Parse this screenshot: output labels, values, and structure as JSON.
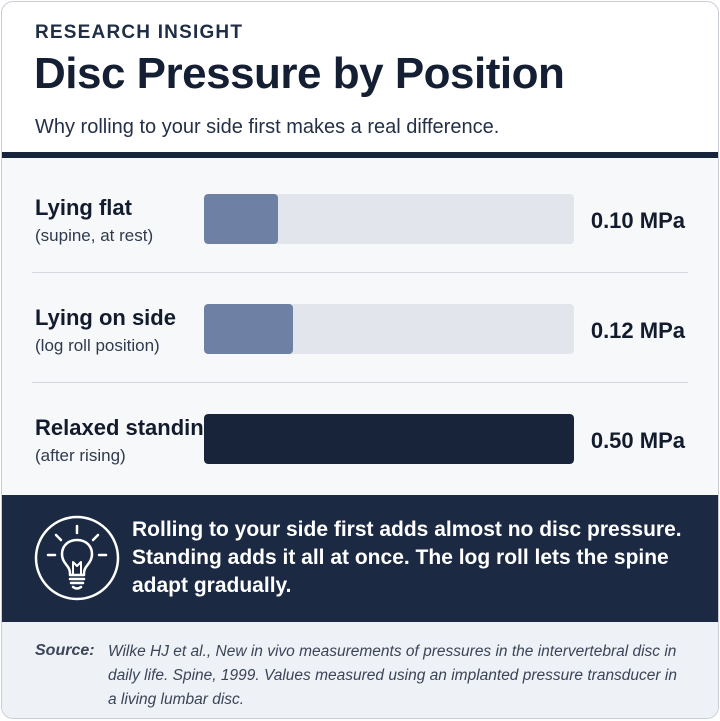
{
  "header": {
    "eyebrow": "RESEARCH INSIGHT",
    "title": "Disc Pressure by Position",
    "subtitle": "Why rolling to your side first makes a real difference."
  },
  "chart_data": {
    "type": "bar",
    "orientation": "horizontal",
    "categories": [
      "Lying flat",
      "Lying on side",
      "Relaxed standing"
    ],
    "sublabels": [
      "(supine, at rest)",
      "(log roll position)",
      "(after rising)"
    ],
    "values": [
      0.1,
      0.12,
      0.5
    ],
    "value_labels": [
      "0.10 MPa",
      "0.12 MPa",
      "0.50 MPa"
    ],
    "unit": "MPa",
    "xlim": [
      0,
      0.5
    ],
    "grid": false,
    "colors": [
      "#6e80a3",
      "#6e80a3",
      "#17243a"
    ],
    "track_color": "#e2e6ec"
  },
  "callout": {
    "icon": "lightbulb-icon",
    "text": "Rolling to your side first adds almost no disc pressure. Standing adds it all at once. The log roll lets the spine adapt gradually."
  },
  "source": {
    "label": "Source:",
    "text": "Wilke HJ et al., New in vivo measurements of pressures in the intervertebral disc in daily life. Spine, 1999. Values measured using an implanted pressure transducer in a living lumbar disc."
  }
}
